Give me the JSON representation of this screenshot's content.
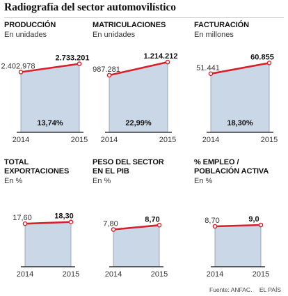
{
  "title": "Radiografía del sector automovilístico",
  "footer": {
    "source": "Fuente: ANFAC.",
    "publisher": "EL PAÍS"
  },
  "colors": {
    "line": "#d6202a",
    "fill": "#c9d7e6",
    "fill_stroke": "#8a9aaa",
    "axis": "#111111"
  },
  "chart_data": [
    {
      "type": "area",
      "title": "PRODUCCIÓN",
      "subtitle": "En unidades",
      "categories": [
        "2014",
        "2015"
      ],
      "values": [
        2402978,
        2733201
      ],
      "value_labels": [
        "2.402.978",
        "2.733.201"
      ],
      "change_label": "13,74%",
      "ylim": [
        0,
        3000000
      ]
    },
    {
      "type": "area",
      "title": "MATRICULACIONES",
      "subtitle": "En unidades",
      "categories": [
        "2014",
        "2015"
      ],
      "values": [
        987281,
        1214212
      ],
      "value_labels": [
        "987.281",
        "1.214.212"
      ],
      "change_label": "22,99%",
      "ylim": [
        0,
        1300000
      ]
    },
    {
      "type": "area",
      "title": "FACTURACIÓN",
      "subtitle": "En millones",
      "categories": [
        "2014",
        "2015"
      ],
      "values": [
        51441,
        60855
      ],
      "value_labels": [
        "51.441",
        "60.855"
      ],
      "change_label": "18,30%",
      "ylim": [
        0,
        66000
      ]
    },
    {
      "type": "area",
      "title": "TOTAL EXPORTACIONES",
      "title_lines": [
        "TOTAL",
        "EXPORTACIONES"
      ],
      "subtitle": "En %",
      "categories": [
        "2014",
        "2015"
      ],
      "values": [
        17.6,
        18.3
      ],
      "value_labels": [
        "17,60",
        "18,30"
      ],
      "change_label": "",
      "ylim": [
        0,
        20.5
      ]
    },
    {
      "type": "area",
      "title": "PESO DEL SECTOR EN EL PIB",
      "title_lines": [
        "PESO DEL SECTOR",
        "EN EL PIB"
      ],
      "subtitle": "En %",
      "categories": [
        "2014",
        "2015"
      ],
      "values": [
        7.8,
        8.7
      ],
      "value_labels": [
        "7,80",
        "8,70"
      ],
      "change_label": "",
      "ylim": [
        0,
        10.5
      ]
    },
    {
      "type": "area",
      "title": "% EMPLEO / POBLACIÓN ACTIVA",
      "title_lines": [
        "% EMPLEO /",
        "POBLACIÓN ACTIVA"
      ],
      "subtitle": "En %",
      "categories": [
        "2014",
        "2015"
      ],
      "values": [
        8.7,
        9.0
      ],
      "value_labels": [
        "8,70",
        "9,0"
      ],
      "change_label": "",
      "ylim": [
        0,
        10.8
      ]
    }
  ]
}
